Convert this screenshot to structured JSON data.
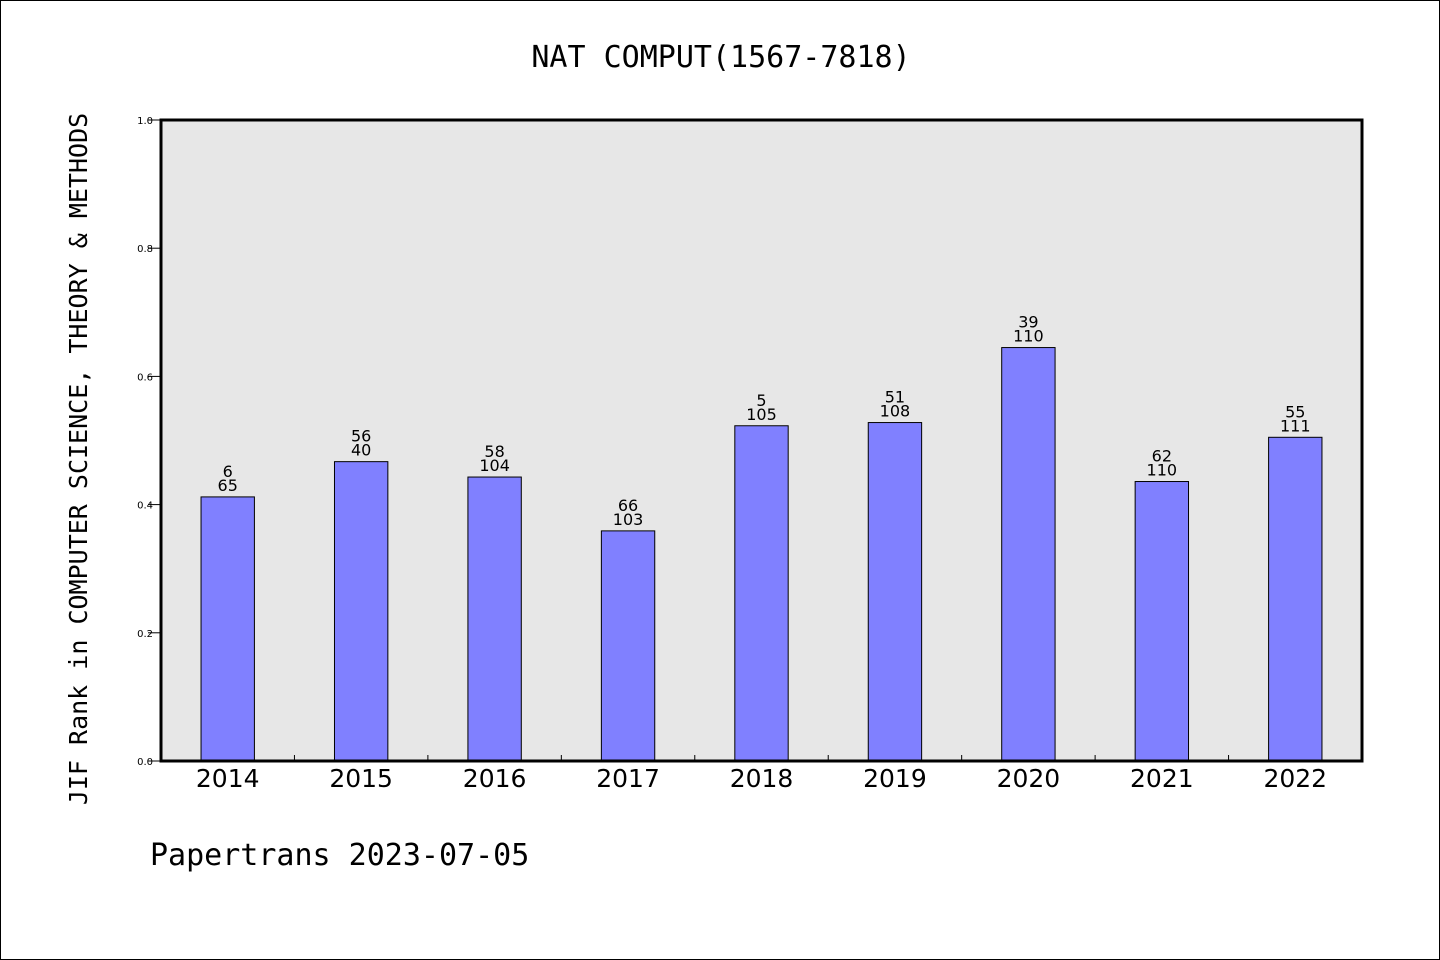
{
  "chart_data": {
    "type": "bar",
    "title": "NAT COMPUT(1567-7818)",
    "ylabel": "JIF Rank in COMPUTER SCIENCE, THEORY & METHODS",
    "xlabel": "",
    "ylim": [
      0,
      1.0
    ],
    "yticks": [
      "0.0",
      "0.2",
      "0.4",
      "0.6",
      "0.8",
      "1.0"
    ],
    "categories": [
      "2014",
      "2015",
      "2016",
      "2017",
      "2018",
      "2019",
      "2020",
      "2021",
      "2022"
    ],
    "values": [
      0.412,
      0.467,
      0.443,
      0.359,
      0.523,
      0.528,
      0.645,
      0.436,
      0.505
    ],
    "rank_labels": [
      "6",
      "56",
      "58",
      "66",
      "5",
      "51",
      "39",
      "62",
      "55"
    ],
    "total_labels": [
      "65",
      "40",
      "104",
      "103",
      "105",
      "108",
      "110",
      "110",
      "111"
    ],
    "grid": false,
    "bar_color": "#8080ff",
    "plot_background": "#e7e7e7"
  },
  "footer": "Papertrans 2023-07-05"
}
